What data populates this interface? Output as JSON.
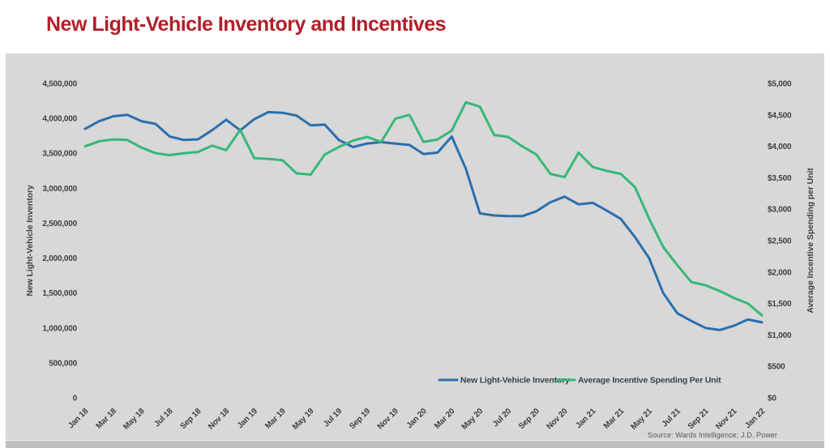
{
  "page": {
    "title": "New Light-Vehicle Inventory and Incentives",
    "source": "Source: Wards Intelligence; J.D. Power"
  },
  "colors": {
    "title_red": "#b01f28",
    "panel_bg": "#d8d8d8",
    "footer_bg": "#bfbfbf",
    "inventory_line": "#2a6fad",
    "incentive_line": "#36b877",
    "axis_text": "#3f3f3f"
  },
  "chart_data": {
    "type": "line",
    "title": "New Light-Vehicle Inventory and Incentives",
    "x": [
      "Jan 18",
      "Feb 18",
      "Mar 18",
      "Apr 18",
      "May 18",
      "Jun 18",
      "Jul 18",
      "Aug 18",
      "Sep 18",
      "Oct 18",
      "Nov 18",
      "Dec 18",
      "Jan 19",
      "Feb 19",
      "Mar 19",
      "Apr 19",
      "May 19",
      "Jun 19",
      "Jul 19",
      "Aug 19",
      "Sep 19",
      "Oct 19",
      "Nov 19",
      "Dec 19",
      "Jan 20",
      "Feb 20",
      "Mar 20",
      "Apr 20",
      "May 20",
      "Jun 20",
      "Jul 20",
      "Aug 20",
      "Sep 20",
      "Oct 20",
      "Nov 20",
      "Dec 20",
      "Jan 21",
      "Feb 21",
      "Mar 21",
      "Apr 21",
      "May 21",
      "Jun 21",
      "Jul 21",
      "Aug 21",
      "Sep 21",
      "Oct 21",
      "Nov 21",
      "Dec 21",
      "Jan 22"
    ],
    "x_tick_labels": [
      "Jan 18",
      "Mar 18",
      "May 18",
      "Jul 18",
      "Sep 18",
      "Nov 18",
      "Jan 19",
      "Mar 19",
      "May 19",
      "Jul 19",
      "Sep 19",
      "Nov 19",
      "Jan 20",
      "Mar 20",
      "May 20",
      "Jul 20",
      "Sep 20",
      "Nov 20",
      "Jan 21",
      "Mar 21",
      "May 21",
      "Jul 21",
      "Sep 21",
      "Nov 21",
      "Jan 22"
    ],
    "left_axis": {
      "label": "New Light-Vehicle Inventory",
      "min": 0,
      "max": 4500000,
      "step": 500000,
      "tick_labels": [
        "4,500,000",
        "4,000,000",
        "3,500,000",
        "3,000,000",
        "2,500,000",
        "2,000,000",
        "1,500,000",
        "1,000,000",
        "500,000",
        "0"
      ]
    },
    "right_axis": {
      "label": "Average Incentive Spending per Unit",
      "min": 0,
      "max": 5000,
      "step": 500,
      "tick_labels": [
        "$5,000",
        "$4,500",
        "$4,000",
        "$3,500",
        "$3,000",
        "$2,500",
        "$2,000",
        "$1,500",
        "$1,000",
        "$500",
        "$0"
      ]
    },
    "legend_position": "bottom-inside",
    "grid": false,
    "series": [
      {
        "name": "New Light-Vehicle Inventory",
        "axis": "left",
        "color_key": "inventory_line",
        "values": [
          3850000,
          3960000,
          4030000,
          4050000,
          3960000,
          3920000,
          3740000,
          3690000,
          3700000,
          3830000,
          3980000,
          3830000,
          3990000,
          4090000,
          4080000,
          4040000,
          3900000,
          3910000,
          3690000,
          3590000,
          3640000,
          3660000,
          3640000,
          3620000,
          3490000,
          3510000,
          3740000,
          3280000,
          2640000,
          2610000,
          2600000,
          2600000,
          2670000,
          2800000,
          2880000,
          2770000,
          2790000,
          2680000,
          2560000,
          2300000,
          2000000,
          1500000,
          1210000,
          1100000,
          1000000,
          970000,
          1030000,
          1120000,
          1080000
        ]
      },
      {
        "name": "Average Incentive Spending Per Unit",
        "axis": "right",
        "color_key": "incentive_line",
        "values": [
          4000,
          4080,
          4110,
          4100,
          3980,
          3890,
          3860,
          3890,
          3910,
          4010,
          3940,
          4260,
          3810,
          3800,
          3780,
          3570,
          3550,
          3870,
          3990,
          4090,
          4150,
          4070,
          4440,
          4500,
          4070,
          4110,
          4250,
          4700,
          4630,
          4180,
          4150,
          4000,
          3870,
          3560,
          3510,
          3900,
          3670,
          3610,
          3560,
          3350,
          2850,
          2400,
          2110,
          1840,
          1790,
          1700,
          1590,
          1500,
          1310
        ]
      }
    ]
  }
}
